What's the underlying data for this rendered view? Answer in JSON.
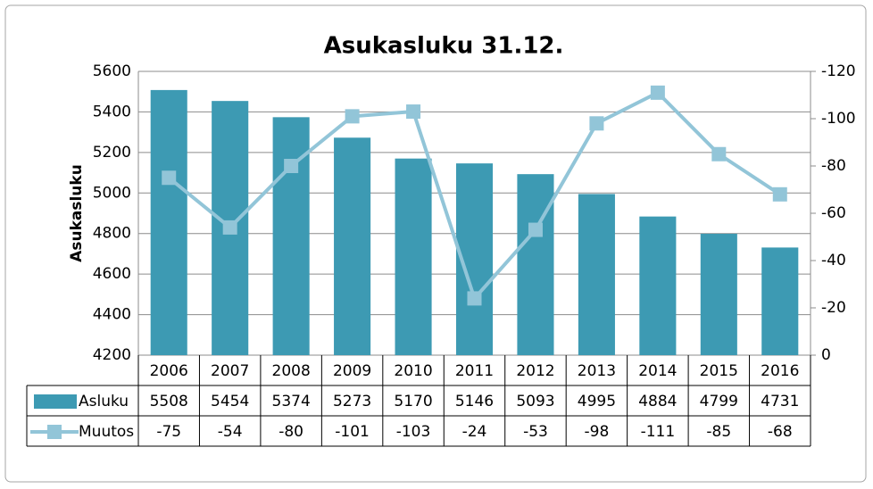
{
  "chart_data": {
    "type": "bar",
    "title": "Asukasluku 31.12.",
    "y_label": "Asukasluku",
    "categories": [
      "2006",
      "2007",
      "2008",
      "2009",
      "2010",
      "2011",
      "2012",
      "2013",
      "2014",
      "2015",
      "2016"
    ],
    "series": [
      {
        "name": "Asluku",
        "color": "#3d9ab3",
        "type": "bar",
        "values": [
          5508,
          5454,
          5374,
          5273,
          5170,
          5146,
          5093,
          4995,
          4884,
          4799,
          4731
        ]
      },
      {
        "name": "Muutos",
        "color": "#92c5d8",
        "type": "line",
        "axis": "y2",
        "values": [
          -75,
          -54,
          -80,
          -101,
          -103,
          -24,
          -53,
          -98,
          -111,
          -85,
          -68
        ]
      }
    ],
    "ylim": [
      4200,
      5600
    ],
    "yticks": [
      4200,
      4400,
      4600,
      4800,
      5000,
      5200,
      5400,
      5600
    ],
    "y2lim": [
      0,
      -120
    ],
    "y2ticks": [
      0,
      -20,
      -40,
      -60,
      -80,
      -100,
      -120
    ],
    "grid": true,
    "data_table": true
  }
}
